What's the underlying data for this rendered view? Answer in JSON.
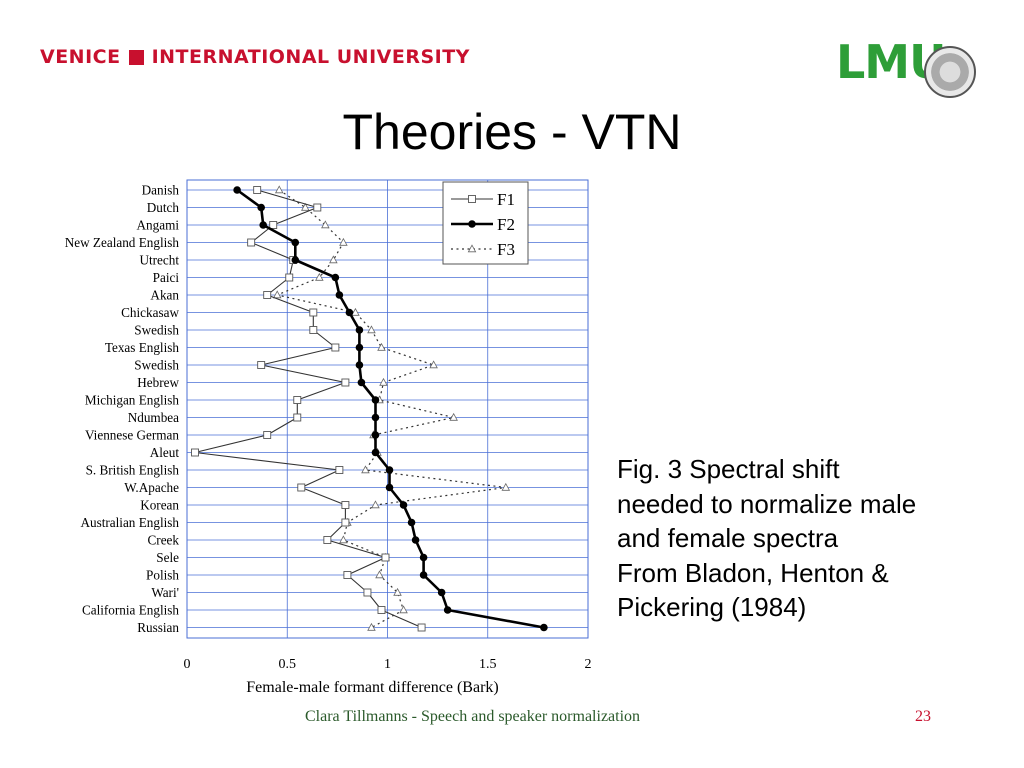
{
  "header": {
    "left_logo": {
      "part1": "VENICE",
      "part2": "INTERNATIONAL UNIVERSITY"
    },
    "right_logo": {
      "text": "LMU"
    }
  },
  "title": "Theories - VTN",
  "caption": {
    "lines": [
      "Fig. 3 Spectral shift",
      "needed to normalize male",
      "and female spectra",
      "From Bladon, Henton &",
      "Pickering (1984)"
    ]
  },
  "footer": {
    "text": "Clara Tillmanns - Speech and speaker normalization",
    "page_number": "23"
  },
  "colors": {
    "grid": "#4a6fd6",
    "accent": "#c8102e",
    "footer_text": "#2b5a2b",
    "lmu_green": "#2e9e38"
  },
  "chart_data": {
    "type": "line",
    "xlabel": "Female-male formant difference (Bark)",
    "xlim": [
      0,
      2
    ],
    "xticks": [
      "0",
      "0.5",
      "1",
      "1.5",
      "2"
    ],
    "xtick_values": [
      0,
      0.5,
      1,
      1.5,
      2
    ],
    "categories": [
      "Danish",
      "Dutch",
      "Angami",
      "New Zealand English",
      "Utrecht",
      "Paici",
      "Akan",
      "Chickasaw",
      "Swedish",
      "Texas English",
      "Swedish",
      "Hebrew",
      "Michigan English",
      "Ndumbea",
      "Viennese German",
      "Aleut",
      "S. British English",
      "W.Apache",
      "Korean",
      "Australian English",
      "Creek",
      "Sele",
      "Polish",
      "Wari'",
      "California English",
      "Russian"
    ],
    "legend_position": "top-right",
    "grid": true,
    "series": [
      {
        "name": "F1",
        "style": "thin-square",
        "values": [
          0.35,
          0.65,
          0.43,
          0.32,
          0.53,
          0.51,
          0.4,
          0.63,
          0.63,
          0.74,
          0.37,
          0.79,
          0.55,
          0.55,
          0.4,
          0.04,
          0.76,
          0.57,
          0.79,
          0.79,
          0.7,
          0.99,
          0.8,
          0.9,
          0.97,
          1.17
        ]
      },
      {
        "name": "F2",
        "style": "thick-dot",
        "values": [
          0.25,
          0.37,
          0.38,
          0.54,
          0.54,
          0.74,
          0.76,
          0.81,
          0.86,
          0.86,
          0.86,
          0.87,
          0.94,
          0.94,
          0.94,
          0.94,
          1.01,
          1.01,
          1.08,
          1.12,
          1.14,
          1.18,
          1.18,
          1.27,
          1.3,
          1.78
        ]
      },
      {
        "name": "F3",
        "style": "dotted-triangle",
        "values": [
          0.46,
          0.59,
          0.69,
          0.78,
          0.73,
          0.66,
          0.45,
          0.84,
          0.92,
          0.97,
          1.23,
          0.98,
          0.96,
          1.33,
          0.93,
          0.95,
          0.89,
          1.59,
          0.94,
          0.8,
          0.78,
          0.99,
          0.96,
          1.05,
          1.08,
          0.92
        ]
      }
    ]
  }
}
